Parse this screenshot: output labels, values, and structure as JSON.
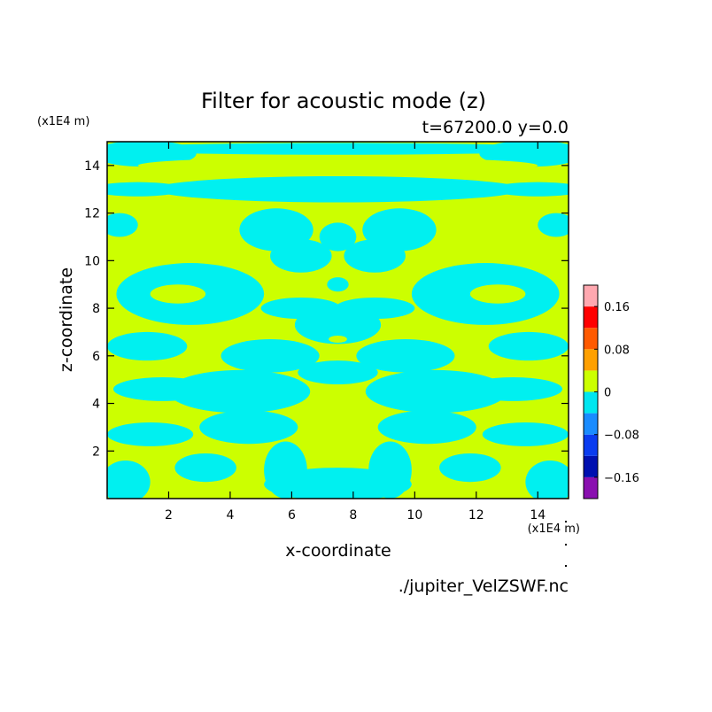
{
  "chart_data": {
    "type": "heatmap",
    "title": "Filter for acoustic mode (z)",
    "subtitle": "t=67200.0 y=0.0",
    "xlabel": "x-coordinate",
    "ylabel": "z-coordinate",
    "x_unit": "(x1E4 m)",
    "y_unit": "(x1E4 m)",
    "source": "./jupiter_VelZSWF.nc",
    "xlim": [
      0,
      15
    ],
    "ylim": [
      0,
      15
    ],
    "x_ticks": [
      2,
      4,
      6,
      8,
      10,
      12,
      14
    ],
    "y_ticks": [
      2,
      4,
      6,
      8,
      10,
      12,
      14
    ],
    "grid": false,
    "colorbar": {
      "levels": [
        -0.2,
        -0.16,
        -0.12,
        -0.08,
        -0.04,
        0,
        0.04,
        0.08,
        0.12,
        0.16,
        0.2
      ],
      "colors": [
        "#8a10b0",
        "#0010b0",
        "#0a3cf0",
        "#1a8cff",
        "#00e6f0",
        "#ccff00",
        "#ffa000",
        "#ff5a00",
        "#ff0000",
        "#ffa8b0"
      ],
      "tick_labels": [
        {
          "value": 0.16,
          "label": "0.16"
        },
        {
          "value": 0.08,
          "label": "0.08"
        },
        {
          "value": 0,
          "label": "0"
        },
        {
          "value": -0.08,
          "label": "−0.08"
        },
        {
          "value": -0.16,
          "label": "−0.16"
        }
      ]
    },
    "field_colors": {
      "negative": "#00f0f0",
      "positive": "#ccff00"
    },
    "negative_regions": [
      {
        "cx": 7.5,
        "cy": 14.7,
        "rx": 7.5,
        "ry": 0.25
      },
      {
        "cx": 1.2,
        "cy": 14.5,
        "rx": 1.7,
        "ry": 0.55
      },
      {
        "cx": 13.8,
        "cy": 14.5,
        "rx": 1.7,
        "ry": 0.55
      },
      {
        "cx": 7.5,
        "cy": 13.0,
        "rx": 6.0,
        "ry": 0.55
      },
      {
        "cx": 1.0,
        "cy": 13.0,
        "rx": 1.5,
        "ry": 0.3
      },
      {
        "cx": 14.0,
        "cy": 13.0,
        "rx": 1.5,
        "ry": 0.3
      },
      {
        "cx": 5.5,
        "cy": 11.3,
        "rx": 1.2,
        "ry": 0.9
      },
      {
        "cx": 9.5,
        "cy": 11.3,
        "rx": 1.2,
        "ry": 0.9
      },
      {
        "cx": 6.3,
        "cy": 10.2,
        "rx": 1.0,
        "ry": 0.7
      },
      {
        "cx": 8.7,
        "cy": 10.2,
        "rx": 1.0,
        "ry": 0.7
      },
      {
        "cx": 7.5,
        "cy": 11.0,
        "rx": 0.6,
        "ry": 0.6
      },
      {
        "cx": 7.5,
        "cy": 9.0,
        "rx": 0.35,
        "ry": 0.3
      },
      {
        "cx": 7.5,
        "cy": 7.3,
        "rx": 1.4,
        "ry": 0.8
      },
      {
        "cx": 6.3,
        "cy": 8.0,
        "rx": 1.3,
        "ry": 0.45
      },
      {
        "cx": 8.7,
        "cy": 8.0,
        "rx": 1.3,
        "ry": 0.45
      },
      {
        "cx": 5.3,
        "cy": 6.0,
        "rx": 1.6,
        "ry": 0.7
      },
      {
        "cx": 9.7,
        "cy": 6.0,
        "rx": 1.6,
        "ry": 0.7
      },
      {
        "cx": 7.5,
        "cy": 5.3,
        "rx": 1.3,
        "ry": 0.5
      },
      {
        "cx": 4.3,
        "cy": 4.5,
        "rx": 2.3,
        "ry": 0.9
      },
      {
        "cx": 10.7,
        "cy": 4.5,
        "rx": 2.3,
        "ry": 0.9
      },
      {
        "cx": 2.7,
        "cy": 8.6,
        "rx": 2.4,
        "ry": 1.3
      },
      {
        "cx": 12.3,
        "cy": 8.6,
        "rx": 2.4,
        "ry": 1.3
      },
      {
        "cx": 1.3,
        "cy": 6.4,
        "rx": 1.3,
        "ry": 0.6
      },
      {
        "cx": 13.7,
        "cy": 6.4,
        "rx": 1.3,
        "ry": 0.6
      },
      {
        "cx": 1.8,
        "cy": 4.6,
        "rx": 1.6,
        "ry": 0.5
      },
      {
        "cx": 13.2,
        "cy": 4.6,
        "rx": 1.6,
        "ry": 0.5
      },
      {
        "cx": 0.4,
        "cy": 11.5,
        "rx": 0.6,
        "ry": 0.5
      },
      {
        "cx": 14.6,
        "cy": 11.5,
        "rx": 0.6,
        "ry": 0.5
      },
      {
        "cx": 4.6,
        "cy": 3.0,
        "rx": 1.6,
        "ry": 0.7
      },
      {
        "cx": 10.4,
        "cy": 3.0,
        "rx": 1.6,
        "ry": 0.7
      },
      {
        "cx": 1.4,
        "cy": 2.7,
        "rx": 1.4,
        "ry": 0.5
      },
      {
        "cx": 13.6,
        "cy": 2.7,
        "rx": 1.4,
        "ry": 0.5
      },
      {
        "cx": 0.6,
        "cy": 0.7,
        "rx": 0.8,
        "ry": 0.9
      },
      {
        "cx": 14.4,
        "cy": 0.7,
        "rx": 0.8,
        "ry": 0.9
      },
      {
        "cx": 3.2,
        "cy": 1.3,
        "rx": 1.0,
        "ry": 0.6
      },
      {
        "cx": 11.8,
        "cy": 1.3,
        "rx": 1.0,
        "ry": 0.6
      },
      {
        "cx": 7.5,
        "cy": 0.6,
        "rx": 2.4,
        "ry": 0.7
      },
      {
        "cx": 5.8,
        "cy": 1.2,
        "rx": 0.7,
        "ry": 1.2
      },
      {
        "cx": 9.2,
        "cy": 1.2,
        "rx": 0.7,
        "ry": 1.2
      }
    ],
    "positive_spots": [
      {
        "cx": 7.5,
        "cy": 9.8,
        "rx": 0.3,
        "ry": 0.3
      },
      {
        "cx": 7.5,
        "cy": 6.7,
        "rx": 0.3,
        "ry": 0.15
      },
      {
        "cx": 7.5,
        "cy": 4.2,
        "rx": 0.3,
        "ry": 0.15
      },
      {
        "cx": 7.5,
        "cy": 12.0,
        "rx": 0.25,
        "ry": 0.1
      },
      {
        "cx": 6.5,
        "cy": 12.0,
        "rx": 0.15,
        "ry": 0.08
      },
      {
        "cx": 8.5,
        "cy": 12.0,
        "rx": 0.15,
        "ry": 0.08
      },
      {
        "cx": 7.5,
        "cy": 14.0,
        "rx": 6.5,
        "ry": 0.35
      },
      {
        "cx": 2.3,
        "cy": 8.6,
        "rx": 0.9,
        "ry": 0.4
      },
      {
        "cx": 12.7,
        "cy": 8.6,
        "rx": 0.9,
        "ry": 0.4
      }
    ]
  }
}
